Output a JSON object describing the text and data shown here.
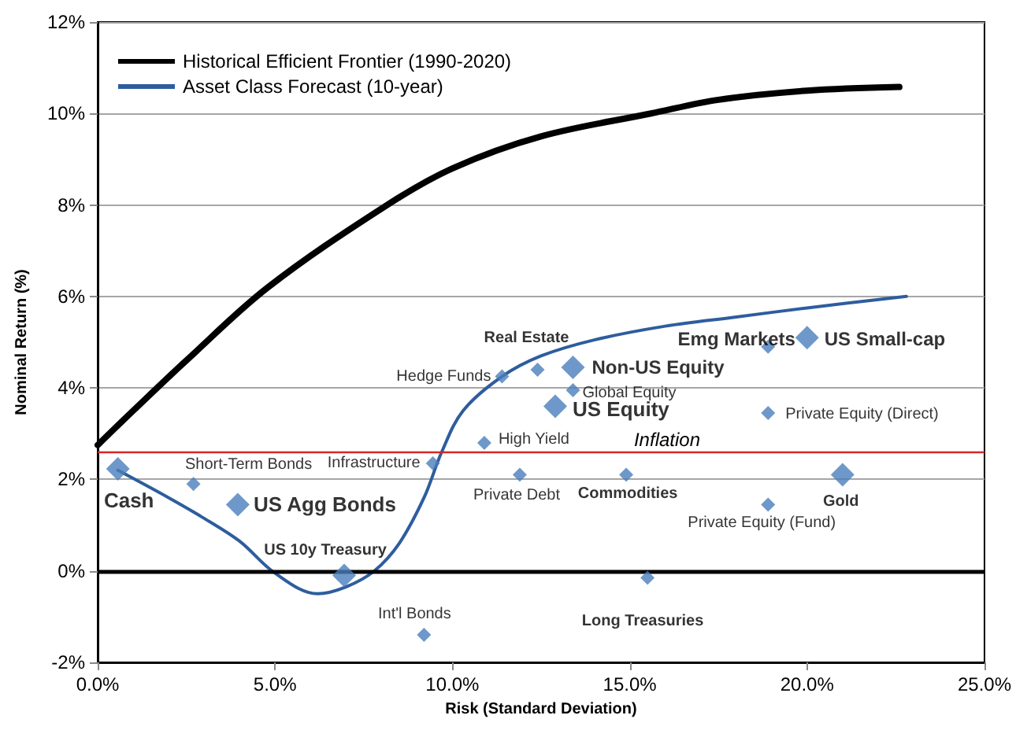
{
  "chart_data": {
    "type": "line",
    "xlabel": "Risk (Standard Deviation)",
    "ylabel": "Nominal Return (%)",
    "xlim": [
      0,
      25
    ],
    "xticks": [
      {
        "value": 0,
        "label": "0.0%"
      },
      {
        "value": 5,
        "label": "5.0%"
      },
      {
        "value": 10,
        "label": "10.0%"
      },
      {
        "value": 15,
        "label": "15.0%"
      },
      {
        "value": 20,
        "label": "20.0%"
      },
      {
        "value": 25,
        "label": "25.0%"
      }
    ],
    "ylim": [
      -2,
      12
    ],
    "yticks": [
      {
        "value": -2,
        "label": "-2%"
      },
      {
        "value": 0,
        "label": "0%"
      },
      {
        "value": 2,
        "label": "2%"
      },
      {
        "value": 4,
        "label": "4%"
      },
      {
        "value": 6,
        "label": "6%"
      },
      {
        "value": 8,
        "label": "8%"
      },
      {
        "value": 10,
        "label": "10%"
      },
      {
        "value": 12,
        "label": "12%"
      }
    ],
    "grid": "y",
    "legend": "top left",
    "series": [
      {
        "name": "Historical Efficient Frontier (1990-2020)",
        "color": "#000000",
        "marker": "none",
        "x": [
          0,
          1,
          2.5,
          4.8,
          8.1,
          10,
          12.5,
          15.6,
          17.5,
          20,
          22.6
        ],
        "values": [
          2.75,
          3.5,
          4.6,
          6.2,
          7.97,
          8.8,
          9.5,
          10.0,
          10.3,
          10.5,
          10.58
        ]
      },
      {
        "name": "Asset Class Forecast (10-year)",
        "color": "#2e5d9e",
        "marker": "none",
        "x": [
          0.57,
          2,
          3,
          4,
          5,
          6.2,
          7,
          7.8,
          8.5,
          9.2,
          9.7,
          10.3,
          11.4,
          12.5,
          14,
          16,
          18,
          20,
          22.8
        ],
        "values": [
          2.2,
          1.6,
          1.15,
          0.65,
          -0.05,
          -0.5,
          -0.35,
          0,
          0.6,
          1.6,
          2.6,
          3.5,
          4.25,
          4.7,
          5.05,
          5.35,
          5.55,
          5.75,
          6.0
        ]
      },
      {
        "type": "scatter",
        "color": "#4a7ebb",
        "marker": "diamond",
        "x": [
          0.57,
          3.95,
          6.95,
          13.4,
          12.9,
          20.0,
          21.0
        ],
        "values": [
          2.23,
          1.45,
          -0.1,
          4.45,
          3.6,
          5.1,
          2.1
        ]
      },
      {
        "type": "scatter",
        "color": "#4a7ebb",
        "marker": "diamond",
        "x": [
          2.7,
          9.45,
          9.2,
          11.4,
          12.4,
          13.4,
          10.9,
          11.9,
          14.9,
          15.5,
          18.9,
          18.9,
          18.9
        ],
        "values": [
          1.9,
          2.35,
          -1.4,
          4.25,
          4.4,
          3.95,
          2.8,
          2.1,
          2.1,
          -0.15,
          4.9,
          3.45,
          1.45
        ]
      }
    ],
    "ref_lines": [
      {
        "axis": "y",
        "value": 2.6,
        "label": "Inflation",
        "color": "#d62728"
      },
      {
        "axis": "y",
        "value": 0,
        "color": "#000000"
      }
    ],
    "annotations": [
      {
        "text": "Cash",
        "x": 0.57,
        "y": 2.23
      },
      {
        "text": "Short-Term Bonds",
        "x": 2.7,
        "y": 1.9
      },
      {
        "text": "US Agg Bonds",
        "x": 3.95,
        "y": 1.45
      },
      {
        "text": "Infrastructure",
        "x": 9.45,
        "y": 2.35
      },
      {
        "text": "US 10y Treasury",
        "x": 6.95,
        "y": -0.1
      },
      {
        "text": "Int'l Bonds",
        "x": 9.2,
        "y": -1.4
      },
      {
        "text": "Hedge Funds",
        "x": 11.4,
        "y": 4.25
      },
      {
        "text": "Real Estate",
        "x": 12.4,
        "y": 4.4
      },
      {
        "text": "Non-US Equity",
        "x": 13.4,
        "y": 4.45
      },
      {
        "text": "Global Equity",
        "x": 13.4,
        "y": 3.95
      },
      {
        "text": "US Equity",
        "x": 12.9,
        "y": 3.6
      },
      {
        "text": "High Yield",
        "x": 10.9,
        "y": 2.8
      },
      {
        "text": "Private Debt",
        "x": 11.9,
        "y": 2.1
      },
      {
        "text": "Commodities",
        "x": 14.9,
        "y": 2.1
      },
      {
        "text": "Long Treasuries",
        "x": 15.5,
        "y": -0.15
      },
      {
        "text": "Emg Markets",
        "x": 18.9,
        "y": 4.9
      },
      {
        "text": "US Small-cap",
        "x": 20.0,
        "y": 5.1
      },
      {
        "text": "Private Equity (Direct)",
        "x": 18.9,
        "y": 3.45
      },
      {
        "text": "Private Equity (Fund)",
        "x": 18.9,
        "y": 1.45
      },
      {
        "text": "Gold",
        "x": 21.0,
        "y": 2.1
      }
    ]
  }
}
